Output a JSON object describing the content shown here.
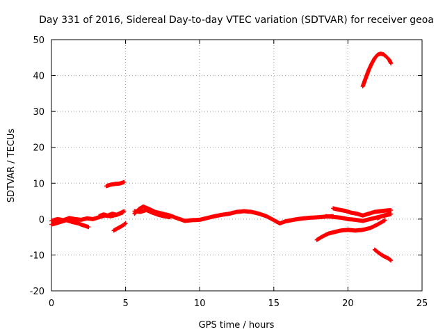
{
  "chart_data": {
    "type": "scatter",
    "title": "Day 331 of 2016, Sidereal Day-to-day VTEC variation (SDTVAR) for receiver geoa",
    "xlabel": "GPS time / hours",
    "ylabel": "SDTVAR / TECUs",
    "xlim": [
      0,
      25
    ],
    "ylim": [
      -20,
      50
    ],
    "xticks": [
      0,
      5,
      10,
      15,
      20,
      25
    ],
    "yticks": [
      -20,
      -10,
      0,
      10,
      20,
      30,
      40,
      50
    ],
    "grid": true,
    "color": "#ff0000",
    "marker": "plus",
    "series": [
      {
        "name": "main-low",
        "x": [
          0.0,
          0.3,
          0.6,
          1.0,
          1.4,
          1.8,
          2.2,
          2.5
        ],
        "y": [
          -1.5,
          -1.2,
          -0.8,
          -0.3,
          -0.8,
          -1.2,
          -1.8,
          -2.2
        ]
      },
      {
        "name": "main-base",
        "x": [
          0.0,
          0.4,
          0.8,
          1.2,
          1.6,
          2.0,
          2.4,
          2.8,
          3.2,
          3.6,
          4.0,
          4.4,
          4.8
        ],
        "y": [
          -0.5,
          0.0,
          -0.3,
          0.3,
          0.0,
          -0.2,
          0.2,
          0.0,
          0.5,
          1.0,
          0.8,
          1.2,
          1.8
        ]
      },
      {
        "name": "main-upper",
        "x": [
          3.2,
          3.5,
          3.8,
          4.1,
          4.4,
          4.7,
          4.9
        ],
        "y": [
          0.8,
          1.3,
          1.0,
          1.5,
          1.2,
          1.8,
          2.2
        ]
      },
      {
        "name": "arc-10",
        "x": [
          3.7,
          4.0,
          4.3,
          4.6,
          4.9
        ],
        "y": [
          9.2,
          9.6,
          9.8,
          9.9,
          10.3
        ]
      },
      {
        "name": "seg-neg",
        "x": [
          4.2,
          4.5,
          4.8,
          5.0
        ],
        "y": [
          -3.2,
          -2.5,
          -1.8,
          -1.2
        ]
      },
      {
        "name": "hump-6",
        "x": [
          5.6,
          5.9,
          6.2,
          6.6,
          7.0,
          7.5,
          8.0,
          8.5,
          9.0
        ],
        "y": [
          1.5,
          2.8,
          3.5,
          2.8,
          2.0,
          1.5,
          1.0,
          0.2,
          -0.5
        ]
      },
      {
        "name": "hump-6b",
        "x": [
          5.6,
          6.0,
          6.4,
          6.8,
          7.2,
          7.6,
          8.0
        ],
        "y": [
          2.2,
          2.0,
          2.5,
          1.8,
          1.2,
          0.8,
          0.5
        ]
      },
      {
        "name": "mid",
        "x": [
          9.0,
          9.5,
          10.0,
          10.5,
          11.0,
          11.5,
          12.0,
          12.5,
          13.0,
          13.5,
          14.0,
          14.5,
          15.0,
          15.4
        ],
        "y": [
          -0.5,
          -0.3,
          -0.2,
          0.3,
          0.8,
          1.2,
          1.5,
          2.0,
          2.2,
          2.0,
          1.5,
          0.8,
          -0.3,
          -1.2
        ]
      },
      {
        "name": "post-15",
        "x": [
          15.4,
          15.8,
          16.2,
          16.6,
          17.0,
          17.5,
          18.0,
          18.5,
          19.0
        ],
        "y": [
          -1.2,
          -0.6,
          -0.3,
          0.0,
          0.2,
          0.4,
          0.5,
          0.7,
          0.8
        ]
      },
      {
        "name": "low-rise",
        "x": [
          17.9,
          18.3,
          18.7,
          19.1,
          19.5,
          20.0
        ],
        "y": [
          -5.8,
          -4.8,
          -4.0,
          -3.6,
          -3.2,
          -3.0
        ]
      },
      {
        "name": "low-flat",
        "x": [
          20.0,
          20.5,
          21.0,
          21.5,
          22.0,
          22.5
        ],
        "y": [
          -3.0,
          -3.2,
          -3.0,
          -2.5,
          -1.5,
          -0.3
        ]
      },
      {
        "name": "upper-19",
        "x": [
          19.0,
          19.4,
          19.8,
          20.2,
          20.6,
          21.0,
          21.4,
          21.8,
          22.2,
          22.6,
          22.9
        ],
        "y": [
          3.0,
          2.6,
          2.3,
          1.8,
          1.5,
          1.0,
          1.5,
          2.0,
          2.2,
          2.4,
          2.5
        ]
      },
      {
        "name": "mid-19",
        "x": [
          18.5,
          19.0,
          19.5,
          20.0,
          20.5,
          21.0,
          21.5,
          22.0,
          22.5,
          22.9
        ],
        "y": [
          0.8,
          0.6,
          0.4,
          0.0,
          -0.2,
          -0.5,
          0.0,
          0.5,
          1.0,
          1.4
        ]
      },
      {
        "name": "tail-down",
        "x": [
          22.0,
          22.2,
          22.4,
          22.6,
          22.8
        ],
        "y": [
          0.2,
          0.7,
          1.0,
          1.2,
          1.5
        ]
      },
      {
        "name": "tail-neg",
        "x": [
          21.8,
          22.1,
          22.4,
          22.7,
          22.9
        ],
        "y": [
          -8.5,
          -9.5,
          -10.3,
          -10.9,
          -11.5
        ]
      },
      {
        "name": "arc-high",
        "x": [
          21.0,
          21.2,
          21.4,
          21.6,
          21.8,
          22.0,
          22.2,
          22.4,
          22.6,
          22.8,
          22.9
        ],
        "y": [
          37.0,
          39.3,
          41.5,
          43.3,
          44.8,
          45.8,
          46.1,
          45.9,
          45.2,
          44.3,
          43.4
        ]
      }
    ]
  }
}
